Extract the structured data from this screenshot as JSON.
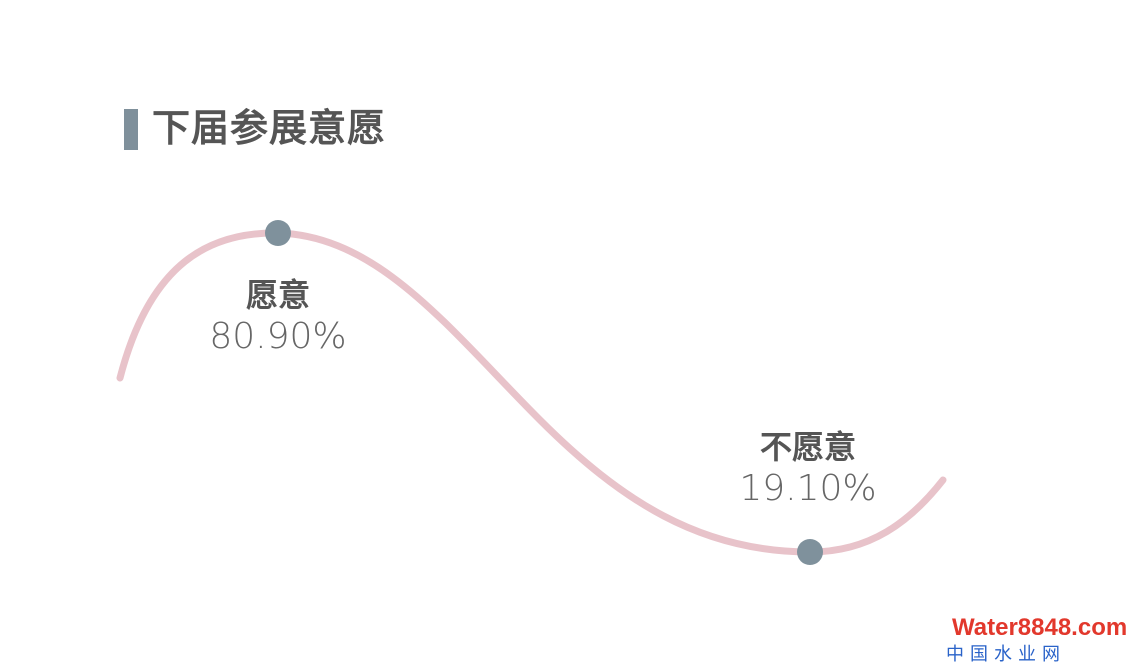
{
  "title": "下届参展意愿",
  "colors": {
    "curve": "#e8c3ca",
    "marker": "#7f919c",
    "title_bar": "#7f909b",
    "text": "#555555"
  },
  "points": [
    {
      "label": "愿意",
      "value": "80.90%"
    },
    {
      "label": "不愿意",
      "value": "19.10%"
    }
  ],
  "watermark": {
    "line1": "Water8848.com",
    "line2": "中国水业网"
  }
}
